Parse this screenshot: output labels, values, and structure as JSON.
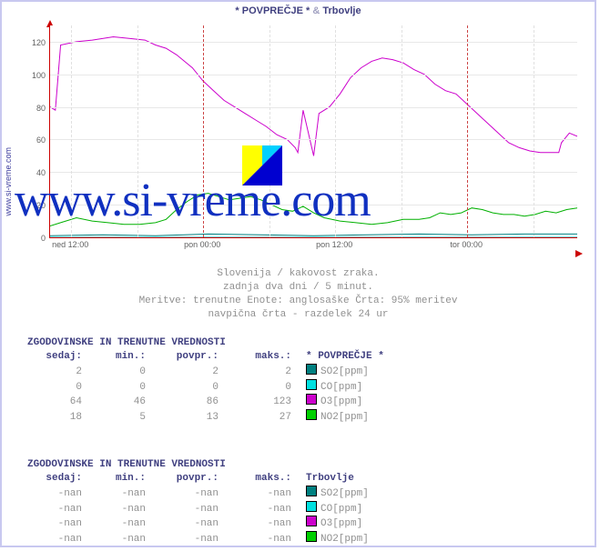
{
  "title_left": "* POVPREČJE *",
  "title_amp": "&",
  "title_right": "Trbovlje",
  "y_axis_label": "www.si-vreme.com",
  "watermark": "www.si-vreme.com",
  "chart": {
    "type": "line",
    "ylim": [
      0,
      130
    ],
    "yticks": [
      0,
      20,
      40,
      60,
      80,
      100,
      120
    ],
    "xticks": [
      "ned 12:00",
      "pon 00:00",
      "pon 12:00",
      "tor 00:00"
    ],
    "xtick_pos": [
      0.04,
      0.29,
      0.54,
      0.79
    ],
    "major_vline_pos": [
      0.29,
      0.79
    ],
    "minor_vline_pos": [
      0.04,
      0.165,
      0.415,
      0.54,
      0.665,
      0.915
    ],
    "background_color": "#ffffff",
    "grid_color": "#e8e8e8",
    "axis_color": "#cc0000",
    "series": {
      "O3": {
        "color": "#cc00cc",
        "width": 1,
        "points": [
          [
            0.0,
            80
          ],
          [
            0.01,
            78
          ],
          [
            0.02,
            118
          ],
          [
            0.05,
            120
          ],
          [
            0.08,
            121
          ],
          [
            0.12,
            123
          ],
          [
            0.15,
            122
          ],
          [
            0.18,
            121
          ],
          [
            0.2,
            118
          ],
          [
            0.22,
            116
          ],
          [
            0.24,
            112
          ],
          [
            0.27,
            104
          ],
          [
            0.29,
            96
          ],
          [
            0.31,
            90
          ],
          [
            0.33,
            84
          ],
          [
            0.35,
            80
          ],
          [
            0.37,
            76
          ],
          [
            0.39,
            72
          ],
          [
            0.41,
            68
          ],
          [
            0.43,
            63
          ],
          [
            0.45,
            60
          ],
          [
            0.465,
            55
          ],
          [
            0.47,
            52
          ],
          [
            0.48,
            78
          ],
          [
            0.5,
            50
          ],
          [
            0.51,
            76
          ],
          [
            0.53,
            80
          ],
          [
            0.55,
            88
          ],
          [
            0.57,
            98
          ],
          [
            0.59,
            104
          ],
          [
            0.61,
            108
          ],
          [
            0.63,
            110
          ],
          [
            0.65,
            109
          ],
          [
            0.67,
            107
          ],
          [
            0.69,
            103
          ],
          [
            0.71,
            100
          ],
          [
            0.73,
            94
          ],
          [
            0.75,
            90
          ],
          [
            0.77,
            88
          ],
          [
            0.79,
            82
          ],
          [
            0.81,
            76
          ],
          [
            0.83,
            70
          ],
          [
            0.85,
            64
          ],
          [
            0.87,
            58
          ],
          [
            0.89,
            55
          ],
          [
            0.91,
            53
          ],
          [
            0.93,
            52
          ],
          [
            0.95,
            52
          ],
          [
            0.965,
            52
          ],
          [
            0.97,
            58
          ],
          [
            0.985,
            64
          ],
          [
            1.0,
            62
          ]
        ]
      },
      "NO2": {
        "color": "#00b000",
        "width": 1,
        "points": [
          [
            0.0,
            7
          ],
          [
            0.02,
            9
          ],
          [
            0.05,
            12
          ],
          [
            0.08,
            10
          ],
          [
            0.11,
            9
          ],
          [
            0.14,
            8
          ],
          [
            0.17,
            8
          ],
          [
            0.2,
            9
          ],
          [
            0.22,
            11
          ],
          [
            0.24,
            17
          ],
          [
            0.26,
            22
          ],
          [
            0.28,
            26
          ],
          [
            0.3,
            27
          ],
          [
            0.32,
            25
          ],
          [
            0.34,
            23
          ],
          [
            0.36,
            24
          ],
          [
            0.38,
            25
          ],
          [
            0.4,
            23
          ],
          [
            0.42,
            20
          ],
          [
            0.44,
            17
          ],
          [
            0.46,
            16
          ],
          [
            0.48,
            19
          ],
          [
            0.5,
            15
          ],
          [
            0.52,
            12
          ],
          [
            0.55,
            10
          ],
          [
            0.58,
            9
          ],
          [
            0.61,
            8
          ],
          [
            0.64,
            9
          ],
          [
            0.67,
            11
          ],
          [
            0.7,
            11
          ],
          [
            0.72,
            12
          ],
          [
            0.74,
            15
          ],
          [
            0.76,
            14
          ],
          [
            0.78,
            15
          ],
          [
            0.8,
            18
          ],
          [
            0.82,
            17
          ],
          [
            0.84,
            15
          ],
          [
            0.86,
            14
          ],
          [
            0.88,
            14
          ],
          [
            0.9,
            13
          ],
          [
            0.92,
            14
          ],
          [
            0.94,
            16
          ],
          [
            0.96,
            15
          ],
          [
            0.98,
            17
          ],
          [
            1.0,
            18
          ]
        ]
      },
      "SO2": {
        "color": "#008080",
        "width": 1,
        "points": [
          [
            0.0,
            1
          ],
          [
            0.1,
            1.5
          ],
          [
            0.2,
            1
          ],
          [
            0.3,
            2
          ],
          [
            0.4,
            1.5
          ],
          [
            0.5,
            1
          ],
          [
            0.6,
            1.5
          ],
          [
            0.7,
            2
          ],
          [
            0.8,
            1.5
          ],
          [
            0.9,
            2
          ],
          [
            1.0,
            2
          ]
        ]
      },
      "CO": {
        "color": "#00c0c0",
        "width": 1,
        "points": [
          [
            0.0,
            0
          ],
          [
            1.0,
            0
          ]
        ]
      }
    }
  },
  "caption_lines": [
    "Slovenija / kakovost zraka.",
    "zadnja dva dni / 5 minut.",
    "Meritve: trenutne  Enote: anglosaške  Črta: 95% meritev",
    "navpična črta - razdelek 24 ur"
  ],
  "tables": [
    {
      "title": "ZGODOVINSKE IN TRENUTNE VREDNOSTI",
      "headers": [
        "sedaj:",
        "min.:",
        "povpr.:",
        "maks.:"
      ],
      "group": "* POVPREČJE *",
      "rows": [
        {
          "now": "2",
          "min": "0",
          "avg": "2",
          "max": "2",
          "color": "#008080",
          "label": "SO2[ppm]"
        },
        {
          "now": "0",
          "min": "0",
          "avg": "0",
          "max": "0",
          "color": "#00e0e0",
          "label": "CO[ppm]"
        },
        {
          "now": "64",
          "min": "46",
          "avg": "86",
          "max": "123",
          "color": "#cc00cc",
          "label": "O3[ppm]"
        },
        {
          "now": "18",
          "min": "5",
          "avg": "13",
          "max": "27",
          "color": "#00d000",
          "label": "NO2[ppm]"
        }
      ]
    },
    {
      "title": "ZGODOVINSKE IN TRENUTNE VREDNOSTI",
      "headers": [
        "sedaj:",
        "min.:",
        "povpr.:",
        "maks.:"
      ],
      "group": "Trbovlje",
      "rows": [
        {
          "now": "-nan",
          "min": "-nan",
          "avg": "-nan",
          "max": "-nan",
          "color": "#008080",
          "label": "SO2[ppm]"
        },
        {
          "now": "-nan",
          "min": "-nan",
          "avg": "-nan",
          "max": "-nan",
          "color": "#00e0e0",
          "label": "CO[ppm]"
        },
        {
          "now": "-nan",
          "min": "-nan",
          "avg": "-nan",
          "max": "-nan",
          "color": "#cc00cc",
          "label": "O3[ppm]"
        },
        {
          "now": "-nan",
          "min": "-nan",
          "avg": "-nan",
          "max": "-nan",
          "color": "#00d000",
          "label": "NO2[ppm]"
        }
      ]
    }
  ],
  "logo_colors": {
    "a": "#ffff00",
    "b": "#00d0ff",
    "c": "#0000d0"
  }
}
